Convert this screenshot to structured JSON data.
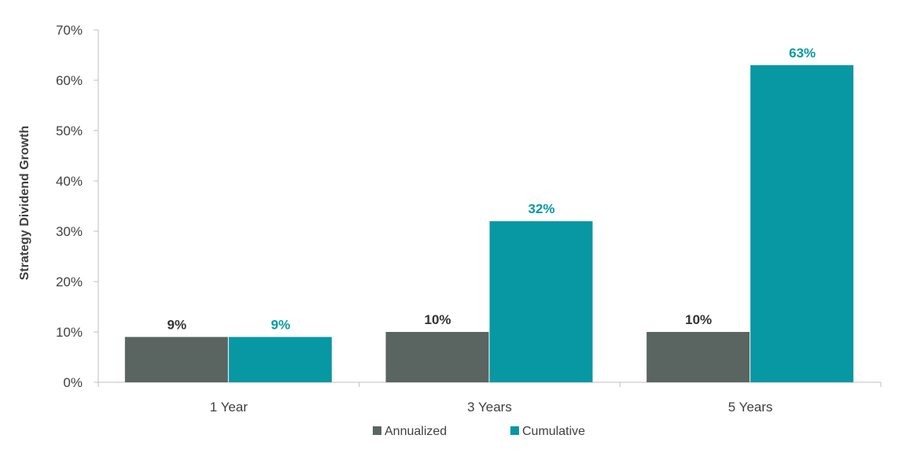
{
  "chart_data": {
    "type": "bar",
    "title": "",
    "xlabel": "",
    "ylabel": "Strategy Dividend Growth",
    "categories": [
      "1 Year",
      "3 Years",
      "5 Years"
    ],
    "series": [
      {
        "name": "Annualized",
        "color": "#5a6561",
        "label_color": "#333333",
        "values": [
          9,
          10,
          10
        ],
        "labels": [
          "9%",
          "10%",
          "10%"
        ]
      },
      {
        "name": "Cumulative",
        "color": "#0898a3",
        "label_color": "#0898a3",
        "values": [
          9,
          32,
          63
        ],
        "labels": [
          "9%",
          "32%",
          "63%"
        ]
      }
    ],
    "ylim": [
      0,
      70
    ],
    "yticks": [
      0,
      10,
      20,
      30,
      40,
      50,
      60,
      70
    ],
    "ytick_labels": [
      "0%",
      "10%",
      "20%",
      "30%",
      "40%",
      "50%",
      "60%",
      "70%"
    ],
    "grid": false,
    "legend_position": "bottom"
  }
}
